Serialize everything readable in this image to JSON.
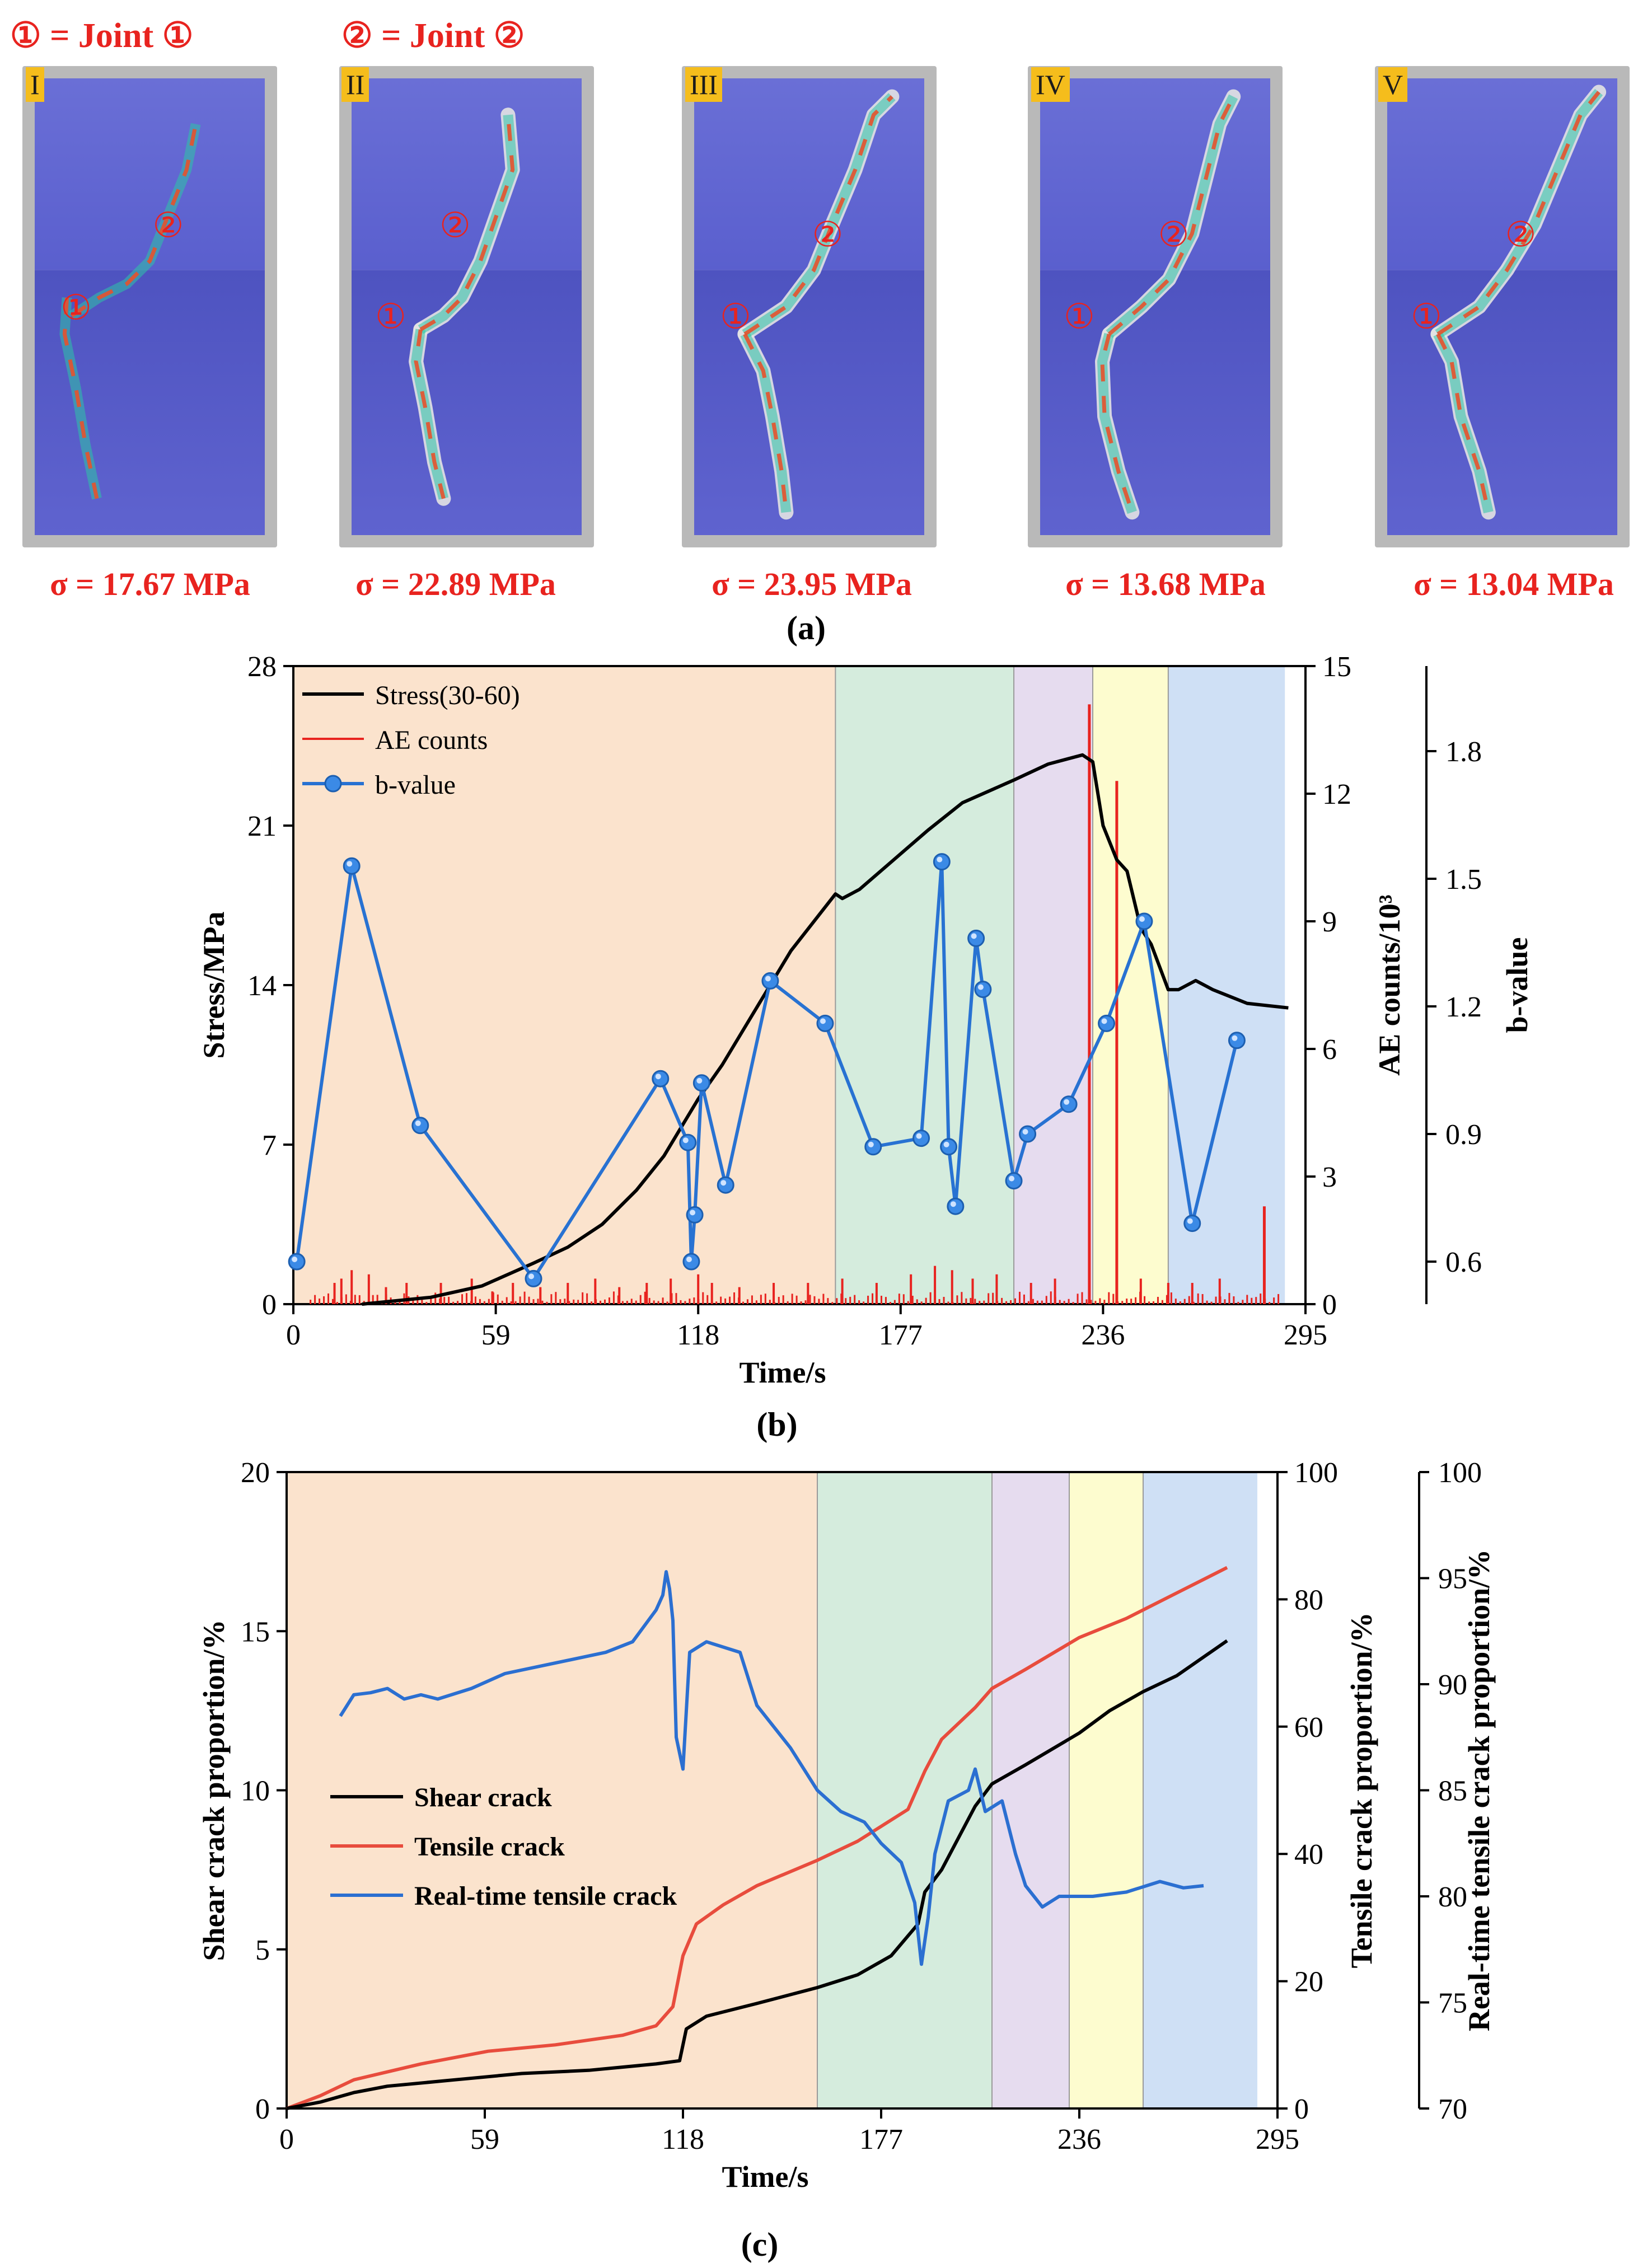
{
  "panel_a": {
    "legend": [
      "① = Joint ①",
      "② =  Joint  ②"
    ],
    "joint_markers": [
      "①",
      "②"
    ],
    "specimens": [
      {
        "label": "I",
        "stress": "σ = 17.67 MPa"
      },
      {
        "label": "II",
        "stress": "σ = 22.89 MPa"
      },
      {
        "label": "III",
        "stress": "σ = 23.95 MPa"
      },
      {
        "label": "IV",
        "stress": "σ = 13.68 MPa"
      },
      {
        "label": "V",
        "stress": "σ = 13.04 MPa"
      }
    ],
    "caption": "(a)"
  },
  "stage_colors": [
    "#fbe3cd",
    "#d5ecdd",
    "#e6dcef",
    "#fdfccf",
    "#cfe0f5"
  ],
  "stage_bounds": [
    0,
    158,
    210,
    233,
    255,
    289
  ],
  "chart_data": [
    {
      "type": "line",
      "caption": "(b)",
      "xlabel": "Time/s",
      "ylabel_left": "Stress/MPa",
      "ylabel_right": "AE counts/10³",
      "ylabel_b": "b-value",
      "x_ticks": [
        0,
        59,
        118,
        177,
        236,
        295
      ],
      "xlim": [
        0,
        295
      ],
      "left_ticks": [
        0,
        7,
        14,
        21,
        28
      ],
      "left_lim": [
        0,
        28
      ],
      "right_ticks": [
        0,
        3,
        6,
        9,
        12,
        15
      ],
      "right_lim": [
        0,
        15
      ],
      "b_ticks": [
        0.6,
        0.9,
        1.2,
        1.5,
        1.8
      ],
      "b_lim": [
        0.5,
        2.0
      ],
      "legend": [
        "Stress(30-60)",
        "AE counts",
        "b-value"
      ],
      "series": [
        {
          "name": "Stress(30-60)",
          "color": "#000000",
          "axis": "left",
          "points": [
            [
              20,
              0
            ],
            [
              40,
              0.3
            ],
            [
              55,
              0.8
            ],
            [
              70,
              1.8
            ],
            [
              80,
              2.5
            ],
            [
              90,
              3.5
            ],
            [
              100,
              5
            ],
            [
              108,
              6.5
            ],
            [
              118,
              9
            ],
            [
              125,
              10.5
            ],
            [
              135,
              13
            ],
            [
              145,
              15.5
            ],
            [
              158,
              18
            ],
            [
              160,
              17.8
            ],
            [
              165,
              18.2
            ],
            [
              175,
              19.5
            ],
            [
              185,
              20.8
            ],
            [
              195,
              22
            ],
            [
              210,
              23
            ],
            [
              220,
              23.7
            ],
            [
              230,
              24.1
            ],
            [
              233,
              23.8
            ],
            [
              236,
              21
            ],
            [
              240,
              19.5
            ],
            [
              243,
              19
            ],
            [
              247,
              16.5
            ],
            [
              250,
              15.8
            ],
            [
              255,
              13.8
            ],
            [
              258,
              13.8
            ],
            [
              263,
              14.2
            ],
            [
              268,
              13.8
            ],
            [
              278,
              13.2
            ],
            [
              290,
              13
            ]
          ]
        },
        {
          "name": "b-value",
          "color": "#2872d2",
          "axis": "b",
          "points": [
            [
              1,
              0.6
            ],
            [
              17,
              1.53
            ],
            [
              37,
              0.92
            ],
            [
              70,
              0.56
            ],
            [
              107,
              1.03
            ],
            [
              115,
              0.88
            ],
            [
              116,
              0.6
            ],
            [
              117,
              0.71
            ],
            [
              119,
              1.02
            ],
            [
              126,
              0.78
            ],
            [
              139,
              1.26
            ],
            [
              155,
              1.16
            ],
            [
              169,
              0.87
            ],
            [
              183,
              0.89
            ],
            [
              189,
              1.54
            ],
            [
              191,
              0.87
            ],
            [
              193,
              0.73
            ],
            [
              199,
              1.36
            ],
            [
              201,
              1.24
            ],
            [
              210,
              0.79
            ],
            [
              214,
              0.9
            ],
            [
              226,
              0.97
            ],
            [
              237,
              1.16
            ],
            [
              248,
              1.4
            ],
            [
              262,
              0.69
            ],
            [
              275,
              1.12
            ]
          ]
        },
        {
          "name": "AE counts",
          "color": "#e8231f",
          "axis": "right",
          "spikes": [
            [
              12,
              0.5
            ],
            [
              14,
              0.6
            ],
            [
              17,
              0.8
            ],
            [
              22,
              0.7
            ],
            [
              27,
              0.4
            ],
            [
              33,
              0.5
            ],
            [
              43,
              0.5
            ],
            [
              52,
              0.6
            ],
            [
              58,
              0.3
            ],
            [
              64,
              0.5
            ],
            [
              72,
              0.4
            ],
            [
              80,
              0.5
            ],
            [
              88,
              0.6
            ],
            [
              95,
              0.4
            ],
            [
              103,
              0.5
            ],
            [
              110,
              0.6
            ],
            [
              118,
              0.7
            ],
            [
              122,
              0.5
            ],
            [
              130,
              0.4
            ],
            [
              140,
              0.5
            ],
            [
              150,
              0.5
            ],
            [
              160,
              0.6
            ],
            [
              170,
              0.5
            ],
            [
              180,
              0.7
            ],
            [
              187,
              0.9
            ],
            [
              192,
              0.8
            ],
            [
              198,
              0.6
            ],
            [
              205,
              0.7
            ],
            [
              215,
              0.5
            ],
            [
              222,
              0.6
            ],
            [
              232,
              14.1
            ],
            [
              240,
              12.3
            ],
            [
              247,
              0.6
            ],
            [
              255,
              0.5
            ],
            [
              262,
              0.5
            ],
            [
              270,
              0.6
            ],
            [
              283,
              2.3
            ]
          ]
        }
      ]
    },
    {
      "type": "line",
      "caption": "(c)",
      "xlabel": "Time/s",
      "ylabel_left": "Shear crack proportion/%",
      "ylabel_right": "Tensile crack proportion/%",
      "ylabel_right2": "Real-time tensile crack proportion/%",
      "x_ticks": [
        0,
        59,
        118,
        177,
        236,
        295
      ],
      "xlim": [
        0,
        295
      ],
      "left_ticks": [
        0,
        5,
        10,
        15,
        20
      ],
      "left_lim": [
        0,
        20
      ],
      "right_ticks": [
        0,
        20,
        40,
        60,
        80,
        100
      ],
      "right_lim": [
        0,
        100
      ],
      "right2_ticks": [
        70,
        75,
        80,
        85,
        90,
        95,
        100
      ],
      "right2_lim": [
        70,
        100
      ],
      "legend": [
        "Shear crack",
        "Tensile crack",
        "Real-time tensile crack"
      ],
      "series": [
        {
          "name": "Shear crack",
          "color": "#000000",
          "axis": "left",
          "points": [
            [
              0,
              0
            ],
            [
              10,
              0.2
            ],
            [
              20,
              0.5
            ],
            [
              30,
              0.7
            ],
            [
              50,
              0.9
            ],
            [
              70,
              1.1
            ],
            [
              90,
              1.2
            ],
            [
              110,
              1.4
            ],
            [
              117,
              1.5
            ],
            [
              119,
              2.5
            ],
            [
              125,
              2.9
            ],
            [
              140,
              3.3
            ],
            [
              158,
              3.8
            ],
            [
              170,
              4.2
            ],
            [
              180,
              4.8
            ],
            [
              188,
              5.8
            ],
            [
              190,
              6.8
            ],
            [
              195,
              7.5
            ],
            [
              205,
              9.5
            ],
            [
              210,
              10.2
            ],
            [
              220,
              10.8
            ],
            [
              236,
              11.8
            ],
            [
              245,
              12.5
            ],
            [
              255,
              13.1
            ],
            [
              265,
              13.6
            ],
            [
              280,
              14.7
            ]
          ]
        },
        {
          "name": "Tensile crack",
          "color": "#e84c3d",
          "axis": "right",
          "points": [
            [
              0,
              0
            ],
            [
              10,
              2
            ],
            [
              20,
              4.5
            ],
            [
              40,
              7
            ],
            [
              60,
              9
            ],
            [
              80,
              10
            ],
            [
              100,
              11.5
            ],
            [
              110,
              13
            ],
            [
              115,
              16
            ],
            [
              118,
              24
            ],
            [
              122,
              29
            ],
            [
              130,
              32
            ],
            [
              140,
              35
            ],
            [
              158,
              39
            ],
            [
              170,
              42
            ],
            [
              185,
              47
            ],
            [
              190,
              53
            ],
            [
              195,
              58
            ],
            [
              205,
              63
            ],
            [
              210,
              66
            ],
            [
              220,
              69
            ],
            [
              236,
              74
            ],
            [
              250,
              77
            ],
            [
              265,
              81
            ],
            [
              280,
              85
            ]
          ]
        },
        {
          "name": "Real-time tensile crack",
          "color": "#2b6fd1",
          "axis": "right2",
          "points": [
            [
              16,
              88.5
            ],
            [
              20,
              89.5
            ],
            [
              25,
              89.6
            ],
            [
              30,
              89.8
            ],
            [
              35,
              89.3
            ],
            [
              40,
              89.5
            ],
            [
              45,
              89.3
            ],
            [
              55,
              89.8
            ],
            [
              65,
              90.5
            ],
            [
              80,
              91
            ],
            [
              95,
              91.5
            ],
            [
              103,
              92
            ],
            [
              110,
              93.5
            ],
            [
              112,
              94.2
            ],
            [
              113,
              95.3
            ],
            [
              114,
              94.5
            ],
            [
              115,
              93
            ],
            [
              116,
              87.5
            ],
            [
              118,
              86
            ],
            [
              120,
              91.5
            ],
            [
              125,
              92
            ],
            [
              135,
              91.5
            ],
            [
              140,
              89
            ],
            [
              150,
              87
            ],
            [
              158,
              85
            ],
            [
              165,
              84
            ],
            [
              172,
              83.5
            ],
            [
              177,
              82.5
            ],
            [
              183,
              81.6
            ],
            [
              187,
              79.7
            ],
            [
              189,
              76.8
            ],
            [
              191,
              79
            ],
            [
              193,
              82
            ],
            [
              197,
              84.5
            ],
            [
              203,
              85
            ],
            [
              205,
              86
            ],
            [
              208,
              84
            ],
            [
              213,
              84.5
            ],
            [
              217,
              82
            ],
            [
              220,
              80.5
            ],
            [
              225,
              79.5
            ],
            [
              230,
              80
            ],
            [
              240,
              80
            ],
            [
              250,
              80.2
            ],
            [
              260,
              80.7
            ],
            [
              267,
              80.4
            ],
            [
              273,
              80.5
            ]
          ]
        }
      ]
    }
  ]
}
